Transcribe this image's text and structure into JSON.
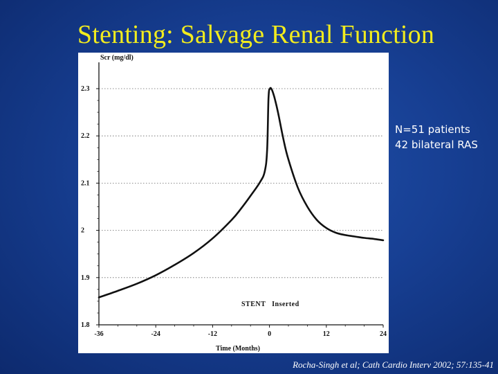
{
  "slide": {
    "title": "Stenting: Salvage Renal Function",
    "note_lines": [
      "N=51 patients",
      "42 bilateral RAS"
    ],
    "citation": "Rocha-Singh et al; Cath Cardio Interv 2002; 57:135-41",
    "colors": {
      "background": "#173f93",
      "title": "#f2ec1e",
      "text": "#ffffff"
    }
  },
  "chart_data": {
    "type": "line",
    "title": "",
    "ylabel": "Scr (mg/dl)",
    "xlabel": "Time (Months)",
    "xlim": [
      -36,
      24
    ],
    "ylim": [
      1.8,
      2.33
    ],
    "xticks": [
      -36,
      -24,
      -12,
      0,
      12,
      24
    ],
    "yticks": [
      1.8,
      1.9,
      2,
      2.1,
      2.2,
      2.3
    ],
    "ytick_labels": [
      "1.8",
      "1.9",
      "2",
      "2.1",
      "2.2",
      "2.3"
    ],
    "grid": "horizontal dotted",
    "annotation": {
      "text": "STENT   Inserted",
      "x": 0
    },
    "series": [
      {
        "x": [
          -36,
          -32,
          -28,
          -24,
          -20,
          -16,
          -12,
          -8,
          -6,
          -4,
          -2,
          -1,
          -0.5,
          -0.2,
          0.1,
          0.5,
          1,
          1.5,
          2,
          3,
          4,
          6,
          8,
          10,
          12,
          14,
          16,
          18,
          20,
          22,
          24
        ],
        "y": [
          1.858,
          1.872,
          1.887,
          1.905,
          1.927,
          1.952,
          1.983,
          2.022,
          2.046,
          2.073,
          2.102,
          2.125,
          2.17,
          2.28,
          2.3,
          2.298,
          2.283,
          2.263,
          2.24,
          2.19,
          2.15,
          2.09,
          2.05,
          2.022,
          2.005,
          1.995,
          1.99,
          1.987,
          1.984,
          1.982,
          1.979
        ]
      }
    ]
  }
}
